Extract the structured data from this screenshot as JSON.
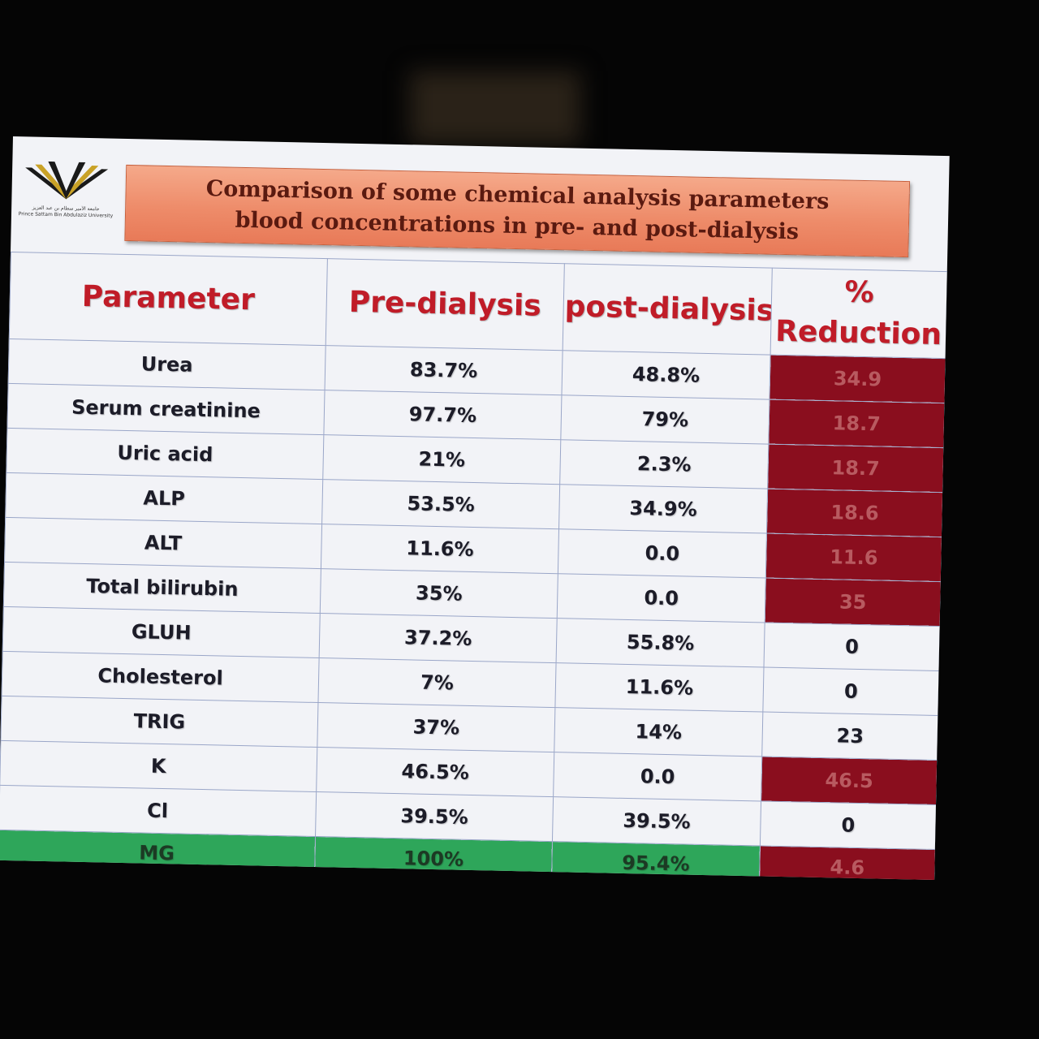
{
  "title": "Comparison of some chemical analysis parameters blood concentrations in pre- and post-dialysis",
  "logo": {
    "name": "university-logo",
    "arabic_text": "جامعة الأمير سطام بن عبد العزيز",
    "english_text": "Prince Sattam Bin Abdulaziz University"
  },
  "colors": {
    "title_bg": "#ee8c6a",
    "header_text": "#c01c28",
    "reduction_highlight": "#8a0e1e",
    "green_row": "#2ea65a",
    "slide_bg": "#f2f3f7"
  },
  "table": {
    "headers": {
      "parameter": "Parameter",
      "pre": "Pre-dialysis",
      "post": "post-dialysis",
      "reduction": "% Reduction"
    },
    "rows": [
      {
        "parameter": "Urea",
        "pre": "83.7%",
        "post": "48.8%",
        "reduction": "34.9",
        "highlight": true
      },
      {
        "parameter": "Serum creatinine",
        "pre": "97.7%",
        "post": "79%",
        "reduction": "18.7",
        "highlight": true
      },
      {
        "parameter": "Uric acid",
        "pre": "21%",
        "post": "2.3%",
        "reduction": "18.7",
        "highlight": true
      },
      {
        "parameter": "ALP",
        "pre": "53.5%",
        "post": "34.9%",
        "reduction": "18.6",
        "highlight": true
      },
      {
        "parameter": "ALT",
        "pre": "11.6%",
        "post": "0.0",
        "reduction": "11.6",
        "highlight": true
      },
      {
        "parameter": "Total bilirubin",
        "pre": "35%",
        "post": "0.0",
        "reduction": "35",
        "highlight": true
      },
      {
        "parameter": "GLUH",
        "pre": "37.2%",
        "post": "55.8%",
        "reduction": "0",
        "highlight": false
      },
      {
        "parameter": "Cholesterol",
        "pre": "7%",
        "post": "11.6%",
        "reduction": "0",
        "highlight": false
      },
      {
        "parameter": "TRIG",
        "pre": "37%",
        "post": "14%",
        "reduction": "23",
        "highlight": false
      },
      {
        "parameter": "K",
        "pre": "46.5%",
        "post": "0.0",
        "reduction": "46.5",
        "highlight": true
      },
      {
        "parameter": "Cl",
        "pre": "39.5%",
        "post": "39.5%",
        "reduction": "0",
        "highlight": false
      },
      {
        "parameter": "MG",
        "pre": "100%",
        "post": "95.4%",
        "reduction": "4.6",
        "highlight": true,
        "green_row": true
      }
    ]
  }
}
